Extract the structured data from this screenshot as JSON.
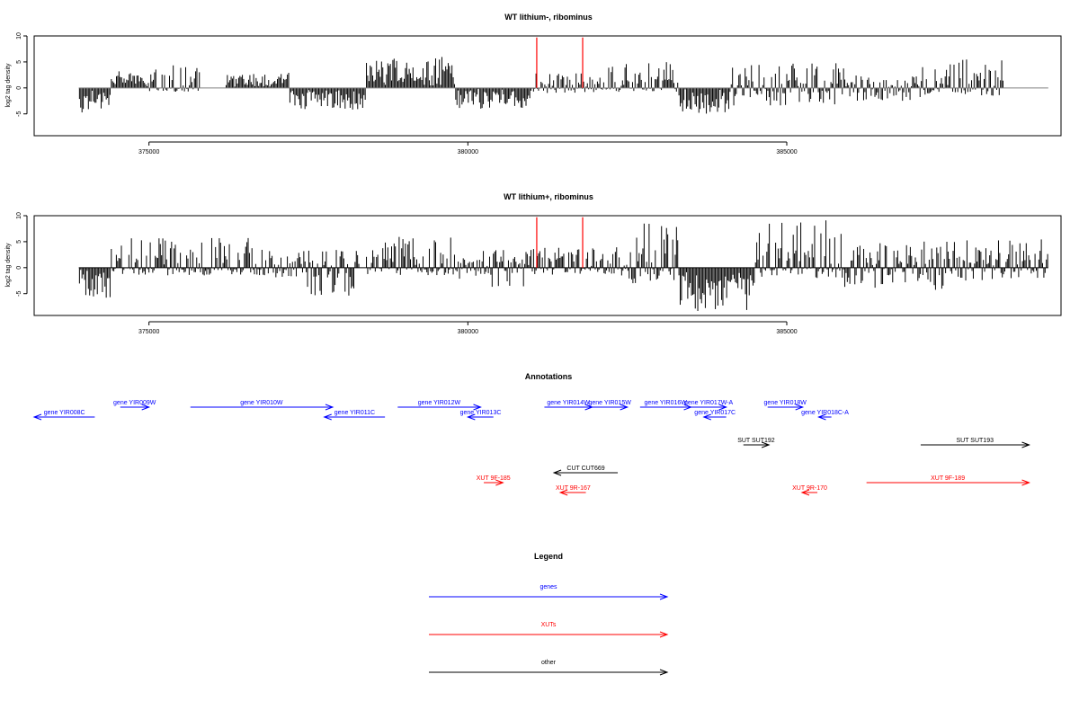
{
  "chart_data": [
    {
      "type": "bar",
      "title": "WT lithium-, ribominus",
      "ylabel": "log2 tag density",
      "xlabel": "",
      "xlim": [
        373200,
        389300
      ],
      "ylim": [
        -9.2,
        10
      ],
      "yticks": [
        -5,
        0,
        5,
        10
      ],
      "xticks": [
        375000,
        380000,
        385000
      ],
      "baseline_color": "#808080",
      "bar_color": "#000000",
      "highlight_color": "#ff0000",
      "highlights": [
        381080,
        381800
      ],
      "highlight_height": 9.7,
      "segments": [
        {
          "x": [
            373900,
            374400
          ],
          "y": [
            -5.2,
            0
          ]
        },
        {
          "x": [
            374400,
            375000
          ],
          "y": [
            0,
            3.2
          ]
        },
        {
          "x": [
            375000,
            375800
          ],
          "y": [
            -0.8,
            4.5
          ]
        },
        {
          "x": [
            376200,
            377200
          ],
          "y": [
            0,
            3
          ]
        },
        {
          "x": [
            377200,
            378400
          ],
          "y": [
            -4.2,
            0
          ]
        },
        {
          "x": [
            378400,
            379800
          ],
          "y": [
            0,
            6.5
          ]
        },
        {
          "x": [
            379800,
            381000
          ],
          "y": [
            -4,
            0
          ]
        },
        {
          "x": [
            381000,
            382100
          ],
          "y": [
            -1,
            3
          ]
        },
        {
          "x": [
            382100,
            383300
          ],
          "y": [
            -0.8,
            5
          ]
        },
        {
          "x": [
            383300,
            384100
          ],
          "y": [
            -5,
            0
          ]
        },
        {
          "x": [
            384100,
            385900
          ],
          "y": [
            -3.5,
            4.8
          ]
        },
        {
          "x": [
            385900,
            387100
          ],
          "y": [
            -2.5,
            2.5
          ]
        },
        {
          "x": [
            387100,
            388400
          ],
          "y": [
            -1.5,
            5.5
          ]
        }
      ]
    },
    {
      "type": "bar",
      "title": "WT lithium+, ribominus",
      "ylabel": "log2 tag density",
      "xlabel": "",
      "xlim": [
        373200,
        389300
      ],
      "ylim": [
        -9.2,
        10
      ],
      "yticks": [
        -5,
        0,
        5,
        10
      ],
      "xticks": [
        375000,
        380000,
        385000
      ],
      "baseline_color": "#000000",
      "bar_color": "#000000",
      "highlight_color": "#ff0000",
      "highlights": [
        381080,
        381800
      ],
      "highlight_height": 9.7,
      "segments": [
        {
          "x": [
            373900,
            374400
          ],
          "y": [
            -6,
            0
          ]
        },
        {
          "x": [
            374400,
            376900
          ],
          "y": [
            -1.5,
            5.8
          ]
        },
        {
          "x": [
            376900,
            377300
          ],
          "y": [
            -2,
            2.5
          ]
        },
        {
          "x": [
            377300,
            378300
          ],
          "y": [
            -5.5,
            3.5
          ]
        },
        {
          "x": [
            378400,
            379800
          ],
          "y": [
            -1.5,
            6.2
          ]
        },
        {
          "x": [
            379800,
            381000
          ],
          "y": [
            -4,
            3.5
          ]
        },
        {
          "x": [
            381000,
            382500
          ],
          "y": [
            -1.5,
            4
          ]
        },
        {
          "x": [
            382500,
            383300
          ],
          "y": [
            -3.5,
            8.5
          ]
        },
        {
          "x": [
            383300,
            384500
          ],
          "y": [
            -8.5,
            0
          ]
        },
        {
          "x": [
            384500,
            385900
          ],
          "y": [
            -2,
            9.6
          ]
        },
        {
          "x": [
            385900,
            387500
          ],
          "y": [
            -4.5,
            5.5
          ]
        },
        {
          "x": [
            387500,
            389100
          ],
          "y": [
            -2.5,
            5.5
          ]
        }
      ]
    },
    {
      "type": "annotation_track",
      "title": "Annotations",
      "xlim": [
        373200,
        389300
      ],
      "features": [
        {
          "label": "gene YIR008C",
          "start": 373200,
          "end": 374150,
          "strand": "-",
          "color": "#0000ff",
          "row": 1
        },
        {
          "label": "gene YIR009W",
          "start": 374550,
          "end": 375000,
          "strand": "+",
          "color": "#0000ff",
          "row": 0
        },
        {
          "label": "gene YIR010W",
          "start": 375650,
          "end": 377880,
          "strand": "+",
          "color": "#0000ff",
          "row": 0
        },
        {
          "label": "gene YIR011C",
          "start": 377750,
          "end": 378700,
          "strand": "-",
          "color": "#0000ff",
          "row": 1
        },
        {
          "label": "gene YIR012W",
          "start": 378900,
          "end": 380200,
          "strand": "+",
          "color": "#0000ff",
          "row": 0
        },
        {
          "label": "gene YIR013C",
          "start": 380000,
          "end": 380400,
          "strand": "-",
          "color": "#0000ff",
          "row": 1
        },
        {
          "label": "gene YIR014W",
          "start": 381200,
          "end": 381950,
          "strand": "+",
          "color": "#0000ff",
          "row": 0
        },
        {
          "label": "gene YIR015W",
          "start": 381950,
          "end": 382500,
          "strand": "+",
          "color": "#0000ff",
          "row": 0
        },
        {
          "label": "gene YIR016W",
          "start": 382700,
          "end": 383500,
          "strand": "+",
          "color": "#0000ff",
          "row": 0
        },
        {
          "label": "gene YIR017W-A",
          "start": 383500,
          "end": 384050,
          "strand": "+",
          "color": "#0000ff",
          "row": 0
        },
        {
          "label": "gene YIR017C",
          "start": 383700,
          "end": 384050,
          "strand": "-",
          "color": "#0000ff",
          "row": 1
        },
        {
          "label": "gene YIR018W",
          "start": 384700,
          "end": 385250,
          "strand": "+",
          "color": "#0000ff",
          "row": 0
        },
        {
          "label": "gene YIR018C-A",
          "start": 385500,
          "end": 385700,
          "strand": "-",
          "color": "#0000ff",
          "row": 1
        },
        {
          "label": "SUT SUT192",
          "start": 384320,
          "end": 384720,
          "strand": "+",
          "color": "#000000",
          "row": 2
        },
        {
          "label": "SUT SUT193",
          "start": 387100,
          "end": 388800,
          "strand": "+",
          "color": "#000000",
          "row": 2
        },
        {
          "label": "CUT CUT669",
          "start": 381350,
          "end": 382350,
          "strand": "-",
          "color": "#000000",
          "row": 3
        },
        {
          "label": "XUT 9F-185",
          "start": 380250,
          "end": 380550,
          "strand": "+",
          "color": "#ff0000",
          "row": 4
        },
        {
          "label": "XUT 9R-167",
          "start": 381450,
          "end": 381850,
          "strand": "-",
          "color": "#ff0000",
          "row": 5
        },
        {
          "label": "XUT 9R-170",
          "start": 385240,
          "end": 385480,
          "strand": "-",
          "color": "#ff0000",
          "row": 5
        },
        {
          "label": "XUT 9F-189",
          "start": 386250,
          "end": 388800,
          "strand": "+",
          "color": "#ff0000",
          "row": 4
        }
      ]
    },
    {
      "type": "legend",
      "title": "Legend",
      "entries": [
        {
          "label": "genes",
          "color": "#0000ff"
        },
        {
          "label": "XUTs",
          "color": "#ff0000"
        },
        {
          "label": "other",
          "color": "#000000"
        }
      ]
    }
  ]
}
